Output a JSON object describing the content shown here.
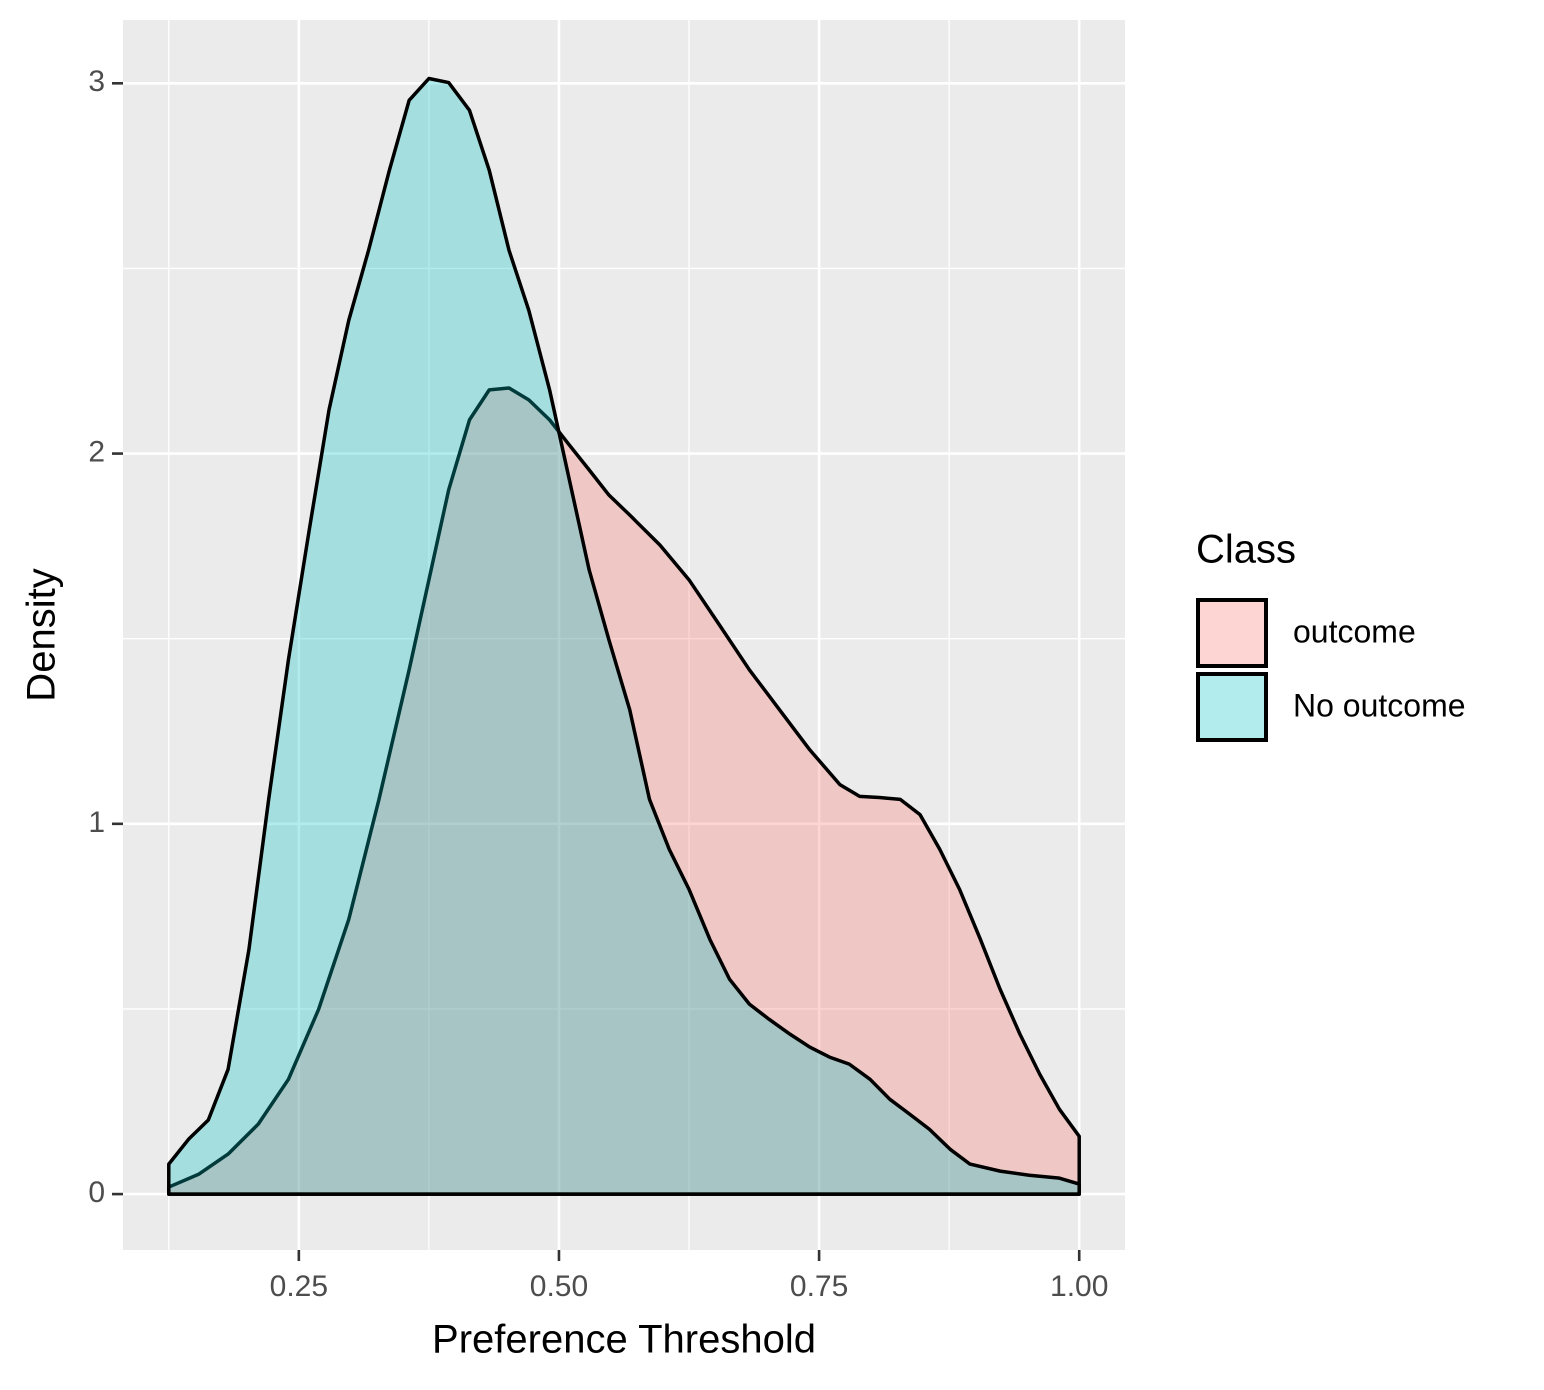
{
  "chart_data": {
    "type": "density",
    "xlabel": "Preference Threshold",
    "ylabel": "Density",
    "legend_title": "Class",
    "xlim": [
      0.081,
      1.044
    ],
    "ylim": [
      -0.151,
      3.171
    ],
    "xticks": [
      {
        "value": 0.25,
        "label": "0.25"
      },
      {
        "value": 0.5,
        "label": "0.50"
      },
      {
        "value": 0.75,
        "label": "0.75"
      },
      {
        "value": 1,
        "label": "1.00"
      }
    ],
    "yticks": [
      0,
      1,
      2,
      3
    ],
    "xminor": [
      0.125,
      0.375,
      0.625,
      0.875
    ],
    "yminor": [
      0.5,
      1.5,
      2.5
    ],
    "grid": true,
    "legend": "right",
    "alpha": 0.3,
    "series": [
      {
        "name": "outcome",
        "color": "#F8766D",
        "x": [
          0.125,
          0.154,
          0.182,
          0.211,
          0.24,
          0.269,
          0.298,
          0.327,
          0.356,
          0.375,
          0.394,
          0.414,
          0.433,
          0.452,
          0.471,
          0.491,
          0.51,
          0.529,
          0.548,
          0.568,
          0.597,
          0.625,
          0.654,
          0.683,
          0.712,
          0.741,
          0.77,
          0.789,
          0.808,
          0.828,
          0.847,
          0.866,
          0.885,
          0.905,
          0.924,
          0.943,
          0.962,
          0.981,
          1.0
        ],
        "values": [
          0.019,
          0.054,
          0.108,
          0.189,
          0.31,
          0.499,
          0.742,
          1.066,
          1.416,
          1.659,
          1.902,
          2.091,
          2.172,
          2.177,
          2.145,
          2.091,
          2.023,
          1.956,
          1.888,
          1.834,
          1.753,
          1.659,
          1.538,
          1.416,
          1.308,
          1.2,
          1.106,
          1.074,
          1.071,
          1.066,
          1.025,
          0.931,
          0.823,
          0.688,
          0.553,
          0.432,
          0.324,
          0.229,
          0.156
        ]
      },
      {
        "name": "No outcome",
        "color": "#00BFC4",
        "x": [
          0.125,
          0.144,
          0.163,
          0.182,
          0.202,
          0.221,
          0.24,
          0.26,
          0.279,
          0.298,
          0.317,
          0.337,
          0.356,
          0.375,
          0.394,
          0.414,
          0.433,
          0.452,
          0.471,
          0.491,
          0.51,
          0.529,
          0.548,
          0.568,
          0.587,
          0.606,
          0.625,
          0.645,
          0.664,
          0.683,
          0.702,
          0.722,
          0.741,
          0.76,
          0.779,
          0.799,
          0.818,
          0.837,
          0.856,
          0.876,
          0.895,
          0.924,
          0.952,
          0.981,
          1.0
        ],
        "values": [
          0.081,
          0.148,
          0.2,
          0.337,
          0.66,
          1.066,
          1.443,
          1.794,
          2.118,
          2.36,
          2.549,
          2.765,
          2.954,
          3.013,
          3.002,
          2.927,
          2.765,
          2.549,
          2.387,
          2.172,
          1.929,
          1.686,
          1.497,
          1.308,
          1.066,
          0.931,
          0.823,
          0.688,
          0.58,
          0.513,
          0.472,
          0.432,
          0.397,
          0.37,
          0.351,
          0.31,
          0.256,
          0.216,
          0.175,
          0.121,
          0.081,
          0.062,
          0.051,
          0.043,
          0.027
        ]
      }
    ]
  }
}
